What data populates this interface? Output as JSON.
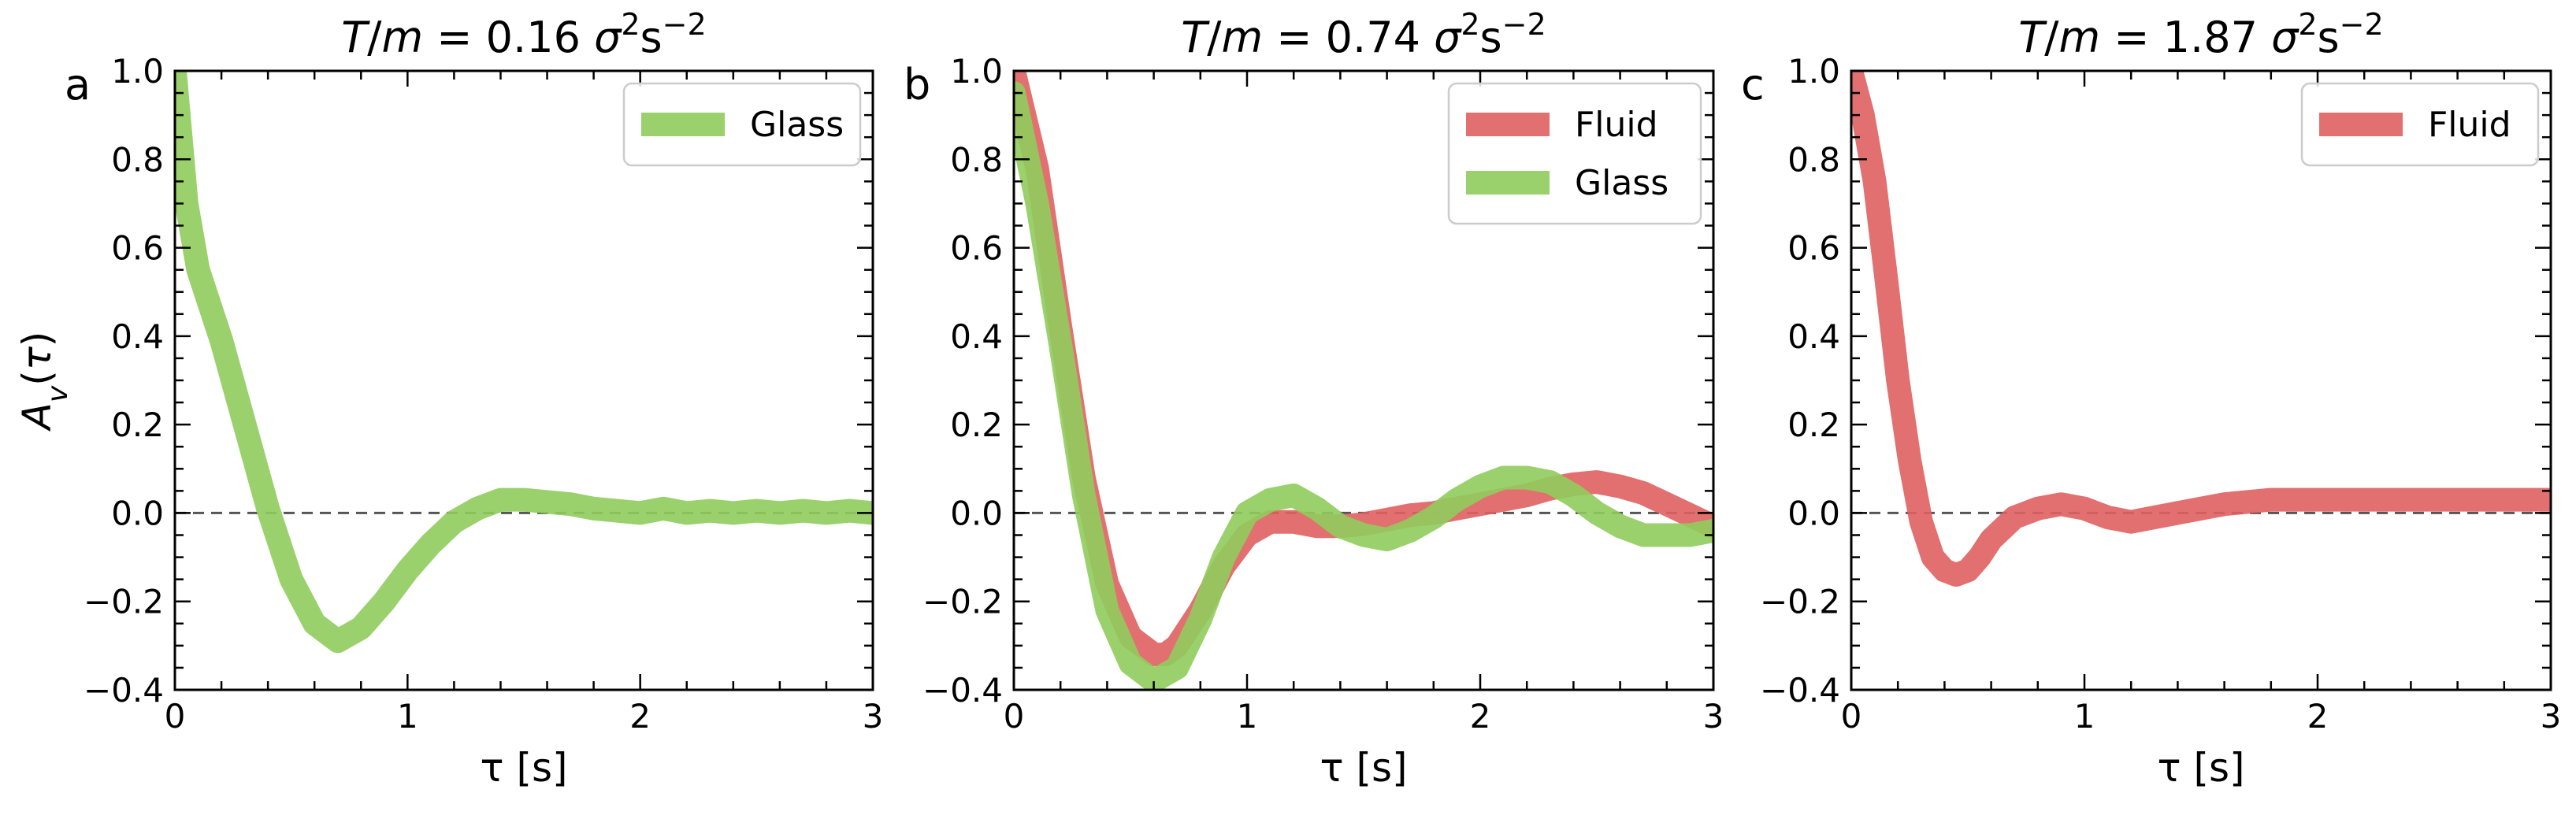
{
  "figure": {
    "ylabel_text": "A_v(τ)"
  },
  "colors": {
    "fluid": "#e06060",
    "glass": "#8fcc5c",
    "zero_line": "#555555"
  },
  "chart_data": [
    {
      "type": "line",
      "panel": "a",
      "title": {
        "prefix": "T/m = ",
        "value": "0.16",
        "unit_base": "σ",
        "unit_sup1": "2",
        "unit_mid": "s",
        "unit_sup2": "−2"
      },
      "xlabel": "τ [s]",
      "ylabel": "A_v(τ)",
      "xlim": [
        0,
        3
      ],
      "ylim": [
        -0.4,
        1.0
      ],
      "xticks": [
        0,
        1,
        2,
        3
      ],
      "yticks": [
        -0.4,
        -0.2,
        0.0,
        0.2,
        0.4,
        0.6,
        0.8,
        1.0
      ],
      "yticklabels": [
        "−0.4",
        "−0.2",
        "0.0",
        "0.2",
        "0.4",
        "0.6",
        "0.8",
        "1.0"
      ],
      "legend_position": "top-right",
      "series": [
        {
          "name": "Glass",
          "color_key": "glass",
          "x": [
            0,
            0.05,
            0.1,
            0.2,
            0.3,
            0.4,
            0.5,
            0.6,
            0.7,
            0.8,
            0.9,
            1.0,
            1.1,
            1.2,
            1.3,
            1.4,
            1.5,
            1.6,
            1.7,
            1.8,
            1.9,
            2.0,
            2.1,
            2.2,
            2.3,
            2.4,
            2.5,
            2.6,
            2.7,
            2.8,
            2.9,
            3.0
          ],
          "y": [
            1.0,
            0.7,
            0.55,
            0.39,
            0.2,
            0.01,
            -0.15,
            -0.25,
            -0.29,
            -0.26,
            -0.2,
            -0.13,
            -0.07,
            -0.02,
            0.01,
            0.03,
            0.03,
            0.025,
            0.02,
            0.01,
            0.005,
            0.0,
            0.01,
            0.0,
            0.005,
            0.0,
            0.005,
            0.0,
            0.005,
            0.0,
            0.005,
            0.0
          ]
        }
      ]
    },
    {
      "type": "line",
      "panel": "b",
      "title": {
        "prefix": "T/m = ",
        "value": "0.74",
        "unit_base": "σ",
        "unit_sup1": "2",
        "unit_mid": "s",
        "unit_sup2": "−2"
      },
      "xlabel": "τ [s]",
      "ylabel": "",
      "xlim": [
        0,
        3
      ],
      "ylim": [
        -0.4,
        1.0
      ],
      "xticks": [
        0,
        1,
        2,
        3
      ],
      "yticks": [
        -0.4,
        -0.2,
        0.0,
        0.2,
        0.4,
        0.6,
        0.8,
        1.0
      ],
      "yticklabels": [
        "−0.4",
        "−0.2",
        "0.0",
        "0.2",
        "0.4",
        "0.6",
        "0.8",
        "1.0"
      ],
      "legend_position": "top-right",
      "series": [
        {
          "name": "Fluid",
          "color_key": "fluid",
          "x": [
            0,
            0.1,
            0.2,
            0.3,
            0.4,
            0.5,
            0.6,
            0.65,
            0.7,
            0.8,
            0.9,
            1.0,
            1.1,
            1.2,
            1.3,
            1.4,
            1.5,
            1.6,
            1.7,
            1.8,
            1.9,
            2.0,
            2.1,
            2.2,
            2.3,
            2.4,
            2.5,
            2.6,
            2.7,
            2.8,
            2.9,
            3.0
          ],
          "y": [
            1.0,
            0.78,
            0.42,
            0.08,
            -0.16,
            -0.28,
            -0.32,
            -0.32,
            -0.3,
            -0.22,
            -0.12,
            -0.05,
            -0.02,
            -0.02,
            -0.03,
            -0.03,
            -0.025,
            -0.015,
            -0.005,
            0.0,
            0.01,
            0.02,
            0.03,
            0.04,
            0.055,
            0.065,
            0.07,
            0.06,
            0.045,
            0.02,
            -0.005,
            -0.03
          ]
        },
        {
          "name": "Glass",
          "color_key": "glass",
          "x": [
            0,
            0.1,
            0.2,
            0.3,
            0.4,
            0.5,
            0.6,
            0.7,
            0.8,
            0.9,
            1.0,
            1.1,
            1.2,
            1.3,
            1.4,
            1.5,
            1.6,
            1.7,
            1.8,
            1.9,
            2.0,
            2.1,
            2.2,
            2.3,
            2.4,
            2.5,
            2.6,
            2.7,
            2.8,
            2.9,
            3.0
          ],
          "y": [
            0.95,
            0.7,
            0.38,
            0.04,
            -0.22,
            -0.34,
            -0.38,
            -0.35,
            -0.24,
            -0.1,
            0.0,
            0.03,
            0.04,
            0.01,
            -0.03,
            -0.05,
            -0.06,
            -0.04,
            -0.01,
            0.03,
            0.06,
            0.08,
            0.08,
            0.07,
            0.04,
            0.0,
            -0.03,
            -0.05,
            -0.05,
            -0.05,
            -0.04
          ]
        }
      ]
    },
    {
      "type": "line",
      "panel": "c",
      "title": {
        "prefix": "T/m = ",
        "value": "1.87",
        "unit_base": "σ",
        "unit_sup1": "2",
        "unit_mid": "s",
        "unit_sup2": "−2"
      },
      "xlabel": "τ [s]",
      "ylabel": "",
      "xlim": [
        0,
        3
      ],
      "ylim": [
        -0.4,
        1.0
      ],
      "xticks": [
        0,
        1,
        2,
        3
      ],
      "yticks": [
        -0.4,
        -0.2,
        0.0,
        0.2,
        0.4,
        0.6,
        0.8,
        1.0
      ],
      "yticklabels": [
        "−0.4",
        "−0.2",
        "0.0",
        "0.2",
        "0.4",
        "0.6",
        "0.8",
        "1.0"
      ],
      "legend_position": "top-right",
      "series": [
        {
          "name": "Fluid",
          "color_key": "fluid",
          "x": [
            0,
            0.05,
            0.1,
            0.15,
            0.2,
            0.25,
            0.3,
            0.35,
            0.4,
            0.45,
            0.5,
            0.55,
            0.6,
            0.7,
            0.8,
            0.9,
            1.0,
            1.1,
            1.2,
            1.3,
            1.4,
            1.5,
            1.6,
            1.8,
            2.0,
            2.2,
            2.5,
            2.8,
            3.0
          ],
          "y": [
            1.0,
            0.9,
            0.75,
            0.53,
            0.3,
            0.12,
            -0.02,
            -0.1,
            -0.13,
            -0.14,
            -0.13,
            -0.1,
            -0.06,
            -0.01,
            0.01,
            0.02,
            0.01,
            -0.01,
            -0.02,
            -0.01,
            0.0,
            0.01,
            0.02,
            0.03,
            0.03,
            0.03,
            0.03,
            0.03,
            0.03
          ]
        }
      ]
    }
  ]
}
